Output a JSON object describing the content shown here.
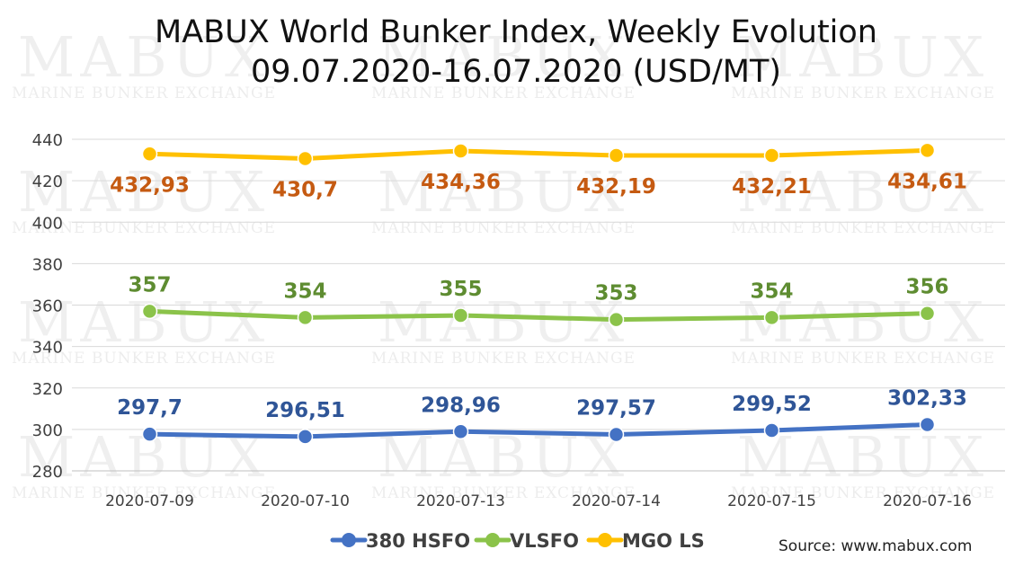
{
  "title_line1": "MABUX World Bunker Index, Weekly Evolution",
  "title_line2": "09.07.2020-16.07.2020 (USD/MT)",
  "source": "Source: www.mabux.com",
  "watermark": {
    "logo": "MABUX",
    "tagline": "MARINE BUNKER EXCHANGE"
  },
  "chart_data": {
    "type": "line",
    "categories": [
      "2020-07-09",
      "2020-07-10",
      "2020-07-13",
      "2020-07-14",
      "2020-07-15",
      "2020-07-16"
    ],
    "ylim": [
      280,
      440
    ],
    "yticks": [
      280,
      300,
      320,
      340,
      360,
      380,
      400,
      420,
      440
    ],
    "grid": true,
    "legend_position": "bottom",
    "series": [
      {
        "name": "380 HSFO",
        "color": "#4472C4",
        "label_color": "#2F5597",
        "values": [
          297.7,
          296.51,
          298.96,
          297.57,
          299.52,
          302.33
        ],
        "labels": [
          "297,7",
          "296,51",
          "298,96",
          "297,57",
          "299,52",
          "302,33"
        ]
      },
      {
        "name": "VLSFO",
        "color": "#8BC34A",
        "label_color": "#5E8C31",
        "values": [
          357,
          354,
          355,
          353,
          354,
          356
        ],
        "labels": [
          "357",
          "354",
          "355",
          "353",
          "354",
          "356"
        ]
      },
      {
        "name": "MGO LS",
        "color": "#FFC000",
        "label_color": "#C55A11",
        "values": [
          432.93,
          430.7,
          434.36,
          432.19,
          432.21,
          434.61
        ],
        "labels": [
          "432,93",
          "430,7",
          "434,36",
          "432,19",
          "432,21",
          "434,61"
        ]
      }
    ]
  }
}
